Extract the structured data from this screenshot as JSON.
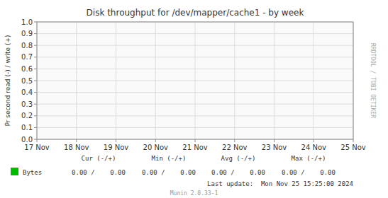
{
  "chart_data": {
    "type": "line",
    "title": "Disk throughput for /dev/mapper/cache1 - by week",
    "ylabel": "Pr second read (-) / write (+)",
    "categories": [
      "17 Nov",
      "18 Nov",
      "19 Nov",
      "20 Nov",
      "21 Nov",
      "22 Nov",
      "23 Nov",
      "24 Nov",
      "25 Nov"
    ],
    "series": [
      {
        "name": "Bytes",
        "color": "#00bb00",
        "values": [
          null,
          null,
          null,
          null,
          null,
          null,
          null,
          null,
          null
        ]
      }
    ],
    "ylim": [
      0.0,
      1.0
    ],
    "yticks": [
      {
        "value": 0.0,
        "label": "0.0"
      },
      0.1,
      0.2,
      0.3,
      0.4,
      0.5,
      0.6,
      0.7,
      0.8,
      0.9,
      {
        "value": 1.0,
        "label": "1.0"
      }
    ],
    "grid": true,
    "legend": "bottom",
    "annotations": [
      {
        "text": "Cur (-/+)"
      },
      {
        "text": "Min (-/+)"
      },
      {
        "text": "Avg (-/+)"
      },
      {
        "text": "Max (-/+)"
      },
      {
        "text": "0.00 /    0.00"
      },
      {
        "text": "0.00 /    0.00"
      },
      {
        "text": "0.00 /    0.00"
      },
      {
        "text": "0.00 /    0.00"
      },
      {
        "text": "Last update:  Mon Nov 25 15:25:00 2024"
      },
      {
        "text": "Munin 2.0.33-1"
      },
      {
        "text": "RRDTOOL / TOBI OETIKER"
      }
    ]
  }
}
